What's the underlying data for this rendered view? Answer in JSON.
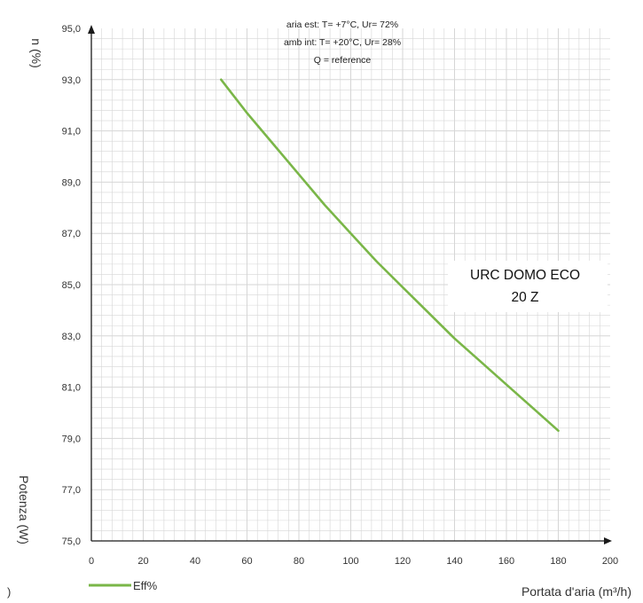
{
  "chart_data": {
    "type": "line",
    "ylabel": "n (%)",
    "ylabel2": "Potenza (W)",
    "xlabel": "Portata d'aria (m³/h)",
    "xlim": [
      0,
      200
    ],
    "ylim": [
      75,
      95
    ],
    "x_ticks": [
      "0",
      "20",
      "40",
      "60",
      "80",
      "100",
      "120",
      "140",
      "160",
      "180",
      "200"
    ],
    "y_ticks": [
      "75,0",
      "77,0",
      "79,0",
      "81,0",
      "83,0",
      "85,0",
      "87,0",
      "89,0",
      "91,0",
      "93,0",
      "95,0"
    ],
    "annotations": [
      "aria est: T= +7°C, Ur= 72%",
      "amb int: T= +20°C, Ur= 28%",
      "Q = reference"
    ],
    "model_label": [
      "URC DOMO ECO",
      "20 Z"
    ],
    "grid": true,
    "legend": "bottom-left",
    "series": [
      {
        "name": "Eff%",
        "color": "#7ab648",
        "x": [
          50,
          60,
          70,
          80,
          90,
          100,
          110,
          120,
          130,
          140,
          150,
          160,
          170,
          180
        ],
        "y": [
          93.0,
          91.7,
          90.5,
          89.3,
          88.1,
          87.0,
          85.9,
          84.9,
          83.9,
          82.9,
          82.0,
          81.1,
          80.2,
          79.3
        ]
      }
    ]
  },
  "colors": {
    "grid": "#d6d6d6",
    "axis": "#1a1a1a"
  }
}
